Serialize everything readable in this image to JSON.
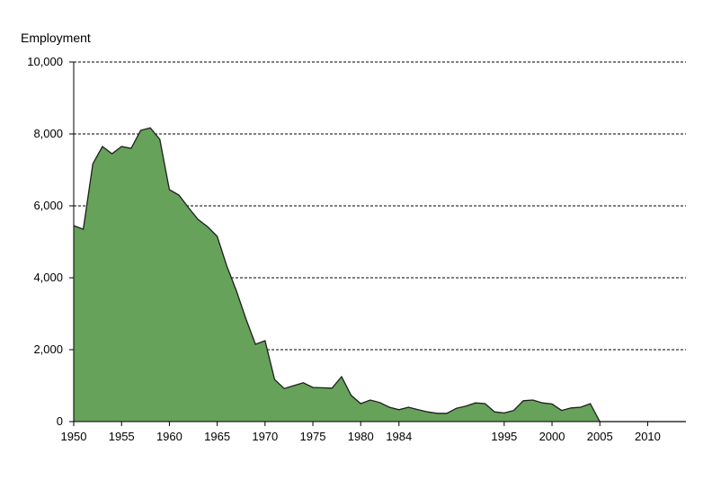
{
  "chart_data": {
    "type": "area",
    "title": "",
    "ylabel": "Employment",
    "xlabel": "",
    "ylim": [
      0,
      10000
    ],
    "xlim": [
      1950,
      2014
    ],
    "yticks": [
      0,
      2000,
      4000,
      6000,
      8000,
      10000
    ],
    "ytick_labels": [
      "0",
      "2,000",
      "4,000",
      "6,000",
      "8,000",
      "10,000"
    ],
    "xticks": [
      1950,
      1955,
      1960,
      1965,
      1970,
      1975,
      1980,
      1984,
      1995,
      2000,
      2005,
      2010
    ],
    "xtick_labels": [
      "1950",
      "1955",
      "1960",
      "1965",
      "1970",
      "1975",
      "1980",
      "1984",
      "1995",
      "2000",
      "2005",
      "2010"
    ],
    "grid": true,
    "colors": {
      "fill": "#66A25A",
      "stroke": "#1e1e1e",
      "grid": "#000000"
    },
    "series": [
      {
        "x": [
          1950,
          1951,
          1952,
          1953,
          1954,
          1955,
          1956,
          1957,
          1958,
          1959,
          1960,
          1961,
          1962,
          1963,
          1964,
          1965,
          1966,
          1967,
          1968,
          1969,
          1970,
          1971,
          1972,
          1973,
          1974,
          1975,
          1976,
          1977,
          1978,
          1979,
          1980,
          1981,
          1982,
          1983,
          1984,
          1985,
          1986,
          1987,
          1988,
          1989,
          1990,
          1991,
          1992,
          1993,
          1994,
          1995,
          1996,
          1997,
          1998,
          1999,
          2000,
          2001,
          2002,
          2003,
          2004,
          2005,
          2006,
          2007,
          2008,
          2009,
          2010,
          2011,
          2012,
          2013,
          2014
        ],
        "y": [
          5450,
          5350,
          7170,
          7650,
          7450,
          7650,
          7600,
          8100,
          8170,
          7850,
          6450,
          6300,
          5950,
          5620,
          5420,
          5150,
          4330,
          3640,
          2860,
          2150,
          2250,
          1170,
          920,
          1000,
          1080,
          950,
          940,
          930,
          1250,
          730,
          500,
          600,
          530,
          400,
          330,
          400,
          330,
          270,
          230,
          230,
          370,
          430,
          520,
          500,
          270,
          240,
          310,
          580,
          600,
          520,
          490,
          310,
          380,
          400,
          500,
          0,
          0,
          0,
          0,
          0,
          0,
          0,
          0,
          0,
          0
        ]
      }
    ]
  }
}
